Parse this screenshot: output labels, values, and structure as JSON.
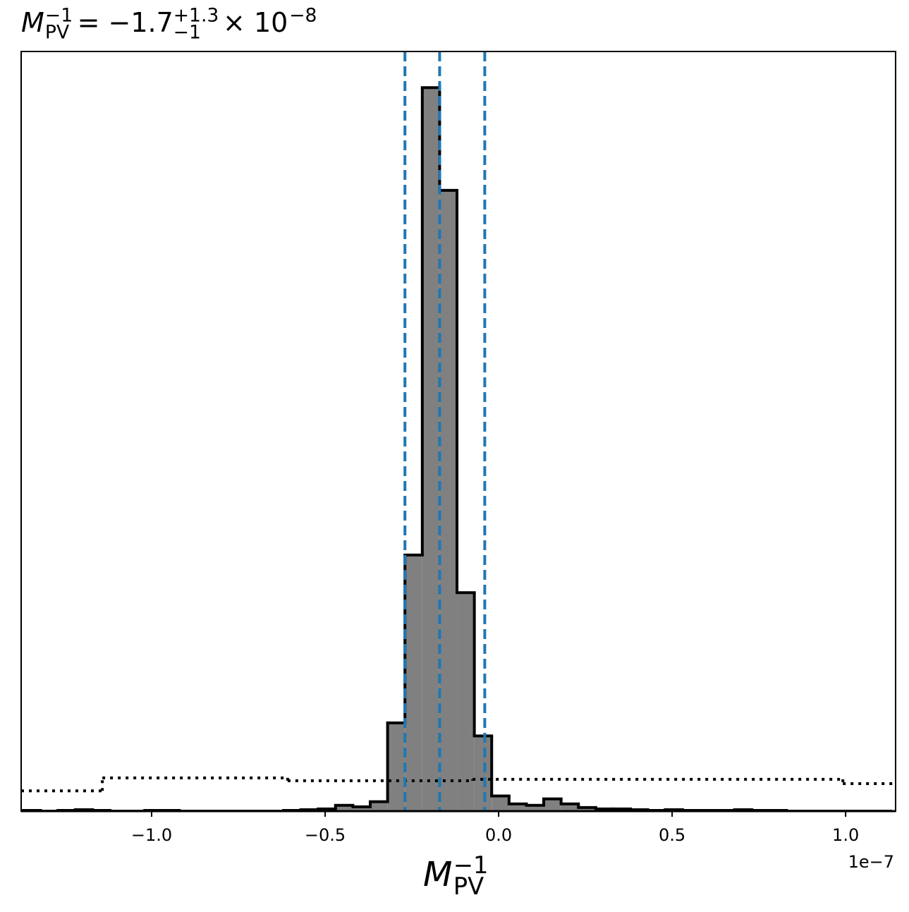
{
  "chart_data": {
    "type": "histogram",
    "title": {
      "symbol": "M",
      "sub": "PV",
      "sup": "−1",
      "eq": "= −1.7",
      "upper": "+1.3",
      "lower": "−1",
      "scale": "× 10",
      "exp": "−8"
    },
    "xlabel": {
      "symbol": "M",
      "sub": "PV",
      "sup": "−1"
    },
    "x_offset_label": "1e−7",
    "xlim": [
      -1.376,
      1.144
    ],
    "ylim": [
      0,
      1.05
    ],
    "xticks": [
      {
        "value": -1.0,
        "label": "−1.0"
      },
      {
        "value": -0.5,
        "label": "−0.5"
      },
      {
        "value": 0.0,
        "label": "0.0"
      },
      0.5,
      {
        "value": 1.0,
        "label": "1.0"
      }
    ],
    "series": [
      {
        "style": "filled",
        "color": "#808080",
        "edgecolor": "#000000",
        "bins": [
          -1.37,
          -1.32,
          -1.27,
          -1.22,
          -1.17,
          -1.12,
          -1.07,
          -1.02,
          -0.97,
          -0.92,
          -0.87,
          -0.82,
          -0.77,
          -0.72,
          -0.67,
          -0.62,
          -0.57,
          -0.52,
          -0.47,
          -0.42,
          -0.37,
          -0.32,
          -0.27,
          -0.22,
          -0.17,
          -0.12,
          -0.07,
          -0.02,
          0.03,
          0.08,
          0.13,
          0.18,
          0.23,
          0.28,
          0.33,
          0.38,
          0.43,
          0.48,
          0.53,
          0.58,
          0.63,
          0.68,
          0.73,
          0.78,
          0.83,
          0.88,
          0.93,
          0.98,
          1.03,
          1.08,
          1.13
        ],
        "values": [
          0.001,
          0,
          0.001,
          0.002,
          0.001,
          0,
          0,
          0.001,
          0.001,
          0,
          0,
          0,
          0,
          0,
          0,
          0.001,
          0.002,
          0.003,
          0.008,
          0.006,
          0.013,
          0.122,
          0.354,
          1.0,
          0.858,
          0.302,
          0.104,
          0.021,
          0.01,
          0.008,
          0.017,
          0.01,
          0.005,
          0.003,
          0.003,
          0.002,
          0.001,
          0.002,
          0.001,
          0.001,
          0.001,
          0.002,
          0.001,
          0.001,
          0,
          0,
          0,
          0,
          0,
          0
        ]
      },
      {
        "style": "dotted",
        "color": "#000000",
        "bins": [
          -1.376,
          -1.142,
          -0.608,
          -0.075,
          0.992,
          1.144
        ],
        "values": [
          0.028,
          0.046,
          0.042,
          0.044,
          0.038
        ]
      }
    ],
    "vlines": {
      "color": "#1f77b4",
      "style": "dashed",
      "values": [
        -0.27,
        -0.17,
        -0.04
      ]
    }
  }
}
